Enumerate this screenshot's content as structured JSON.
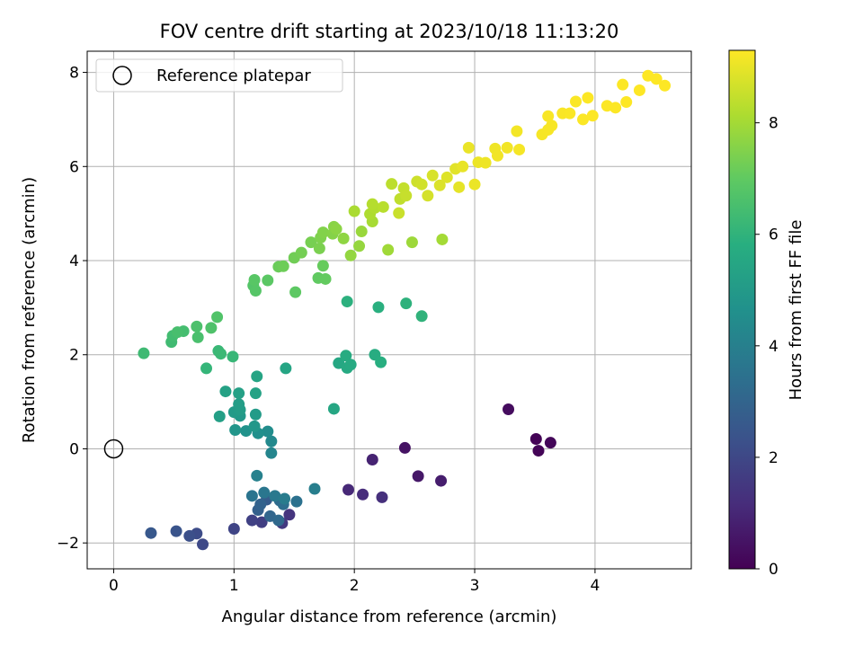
{
  "chart_data": {
    "type": "scatter",
    "title": "FOV centre drift starting at 2023/10/18 11:13:20",
    "xlabel": "Angular distance from reference (arcmin)",
    "ylabel": "Rotation from reference (arcmin)",
    "xlim": [
      -0.22,
      4.8
    ],
    "ylim": [
      -2.55,
      8.45
    ],
    "xticks": [
      0,
      1,
      2,
      3,
      4
    ],
    "yticks": [
      -2,
      0,
      2,
      4,
      6,
      8
    ],
    "grid": true,
    "legend": {
      "position": "top-left",
      "entries": [
        "Reference platepar"
      ]
    },
    "reference_point": {
      "x": 0,
      "y": 0,
      "label": "Reference platepar"
    },
    "colorbar": {
      "label": "Hours from first FF file",
      "range": [
        0,
        9.3
      ],
      "ticks": [
        0,
        2,
        4,
        6,
        8
      ],
      "colormap": "viridis"
    },
    "points": [
      [
        3.51,
        0.21,
        0.05
      ],
      [
        3.53,
        -0.04,
        0.1
      ],
      [
        3.63,
        0.13,
        0.15
      ],
      [
        3.28,
        0.84,
        0.3
      ],
      [
        2.42,
        0.02,
        0.45
      ],
      [
        2.53,
        -0.58,
        0.6
      ],
      [
        2.72,
        -0.68,
        0.75
      ],
      [
        2.15,
        -0.23,
        0.9
      ],
      [
        1.95,
        -0.87,
        1.05
      ],
      [
        2.07,
        -0.97,
        1.15
      ],
      [
        2.23,
        -1.03,
        1.25
      ],
      [
        1.46,
        -1.4,
        1.4
      ],
      [
        1.4,
        -1.58,
        1.55
      ],
      [
        1.23,
        -1.56,
        1.7
      ],
      [
        1.15,
        -1.52,
        1.8
      ],
      [
        1.0,
        -1.7,
        1.9
      ],
      [
        0.74,
        -2.03,
        2.05
      ],
      [
        0.69,
        -1.8,
        2.15
      ],
      [
        0.63,
        -1.85,
        2.25
      ],
      [
        0.52,
        -1.75,
        2.4
      ],
      [
        0.31,
        -1.79,
        2.55
      ],
      [
        1.27,
        -1.08,
        2.7
      ],
      [
        1.2,
        -1.3,
        2.85
      ],
      [
        1.22,
        -1.18,
        2.95
      ],
      [
        1.3,
        -1.43,
        3.05
      ],
      [
        1.37,
        -1.52,
        3.15
      ],
      [
        1.38,
        -1.1,
        3.25
      ],
      [
        1.41,
        -1.18,
        3.35
      ],
      [
        1.52,
        -1.12,
        3.45
      ],
      [
        1.15,
        -1.0,
        3.55
      ],
      [
        1.25,
        -0.93,
        3.65
      ],
      [
        1.34,
        -1.0,
        3.75
      ],
      [
        1.42,
        -1.06,
        3.85
      ],
      [
        1.67,
        -0.85,
        3.95
      ],
      [
        1.19,
        -0.57,
        4.05
      ],
      [
        1.31,
        -0.09,
        4.2
      ],
      [
        1.31,
        0.16,
        4.35
      ],
      [
        1.28,
        0.37,
        4.5
      ],
      [
        1.2,
        0.33,
        4.6
      ],
      [
        1.1,
        0.38,
        4.7
      ],
      [
        1.01,
        0.4,
        4.8
      ],
      [
        1.17,
        0.48,
        4.9
      ],
      [
        1.05,
        0.7,
        4.95
      ],
      [
        1.0,
        0.78,
        5.0
      ],
      [
        1.18,
        0.73,
        5.05
      ],
      [
        1.05,
        0.83,
        5.1
      ],
      [
        1.04,
        0.95,
        5.15
      ],
      [
        0.88,
        0.69,
        5.2
      ],
      [
        1.04,
        1.18,
        5.25
      ],
      [
        0.93,
        1.22,
        5.3
      ],
      [
        1.18,
        1.18,
        5.35
      ],
      [
        1.19,
        1.54,
        5.4
      ],
      [
        1.43,
        1.71,
        5.45
      ],
      [
        1.83,
        0.85,
        5.5
      ],
      [
        1.87,
        1.82,
        5.55
      ],
      [
        1.94,
        1.72,
        5.6
      ],
      [
        1.97,
        1.79,
        5.65
      ],
      [
        1.93,
        1.98,
        5.7
      ],
      [
        2.17,
        2.0,
        5.75
      ],
      [
        2.22,
        1.84,
        5.8
      ],
      [
        2.2,
        3.01,
        5.85
      ],
      [
        1.94,
        3.13,
        5.9
      ],
      [
        2.43,
        3.09,
        5.95
      ],
      [
        2.56,
        2.82,
        6.0
      ],
      [
        0.77,
        1.71,
        6.1
      ],
      [
        0.99,
        1.96,
        6.15
      ],
      [
        0.87,
        2.08,
        6.2
      ],
      [
        0.89,
        2.02,
        6.25
      ],
      [
        0.25,
        2.03,
        6.3
      ],
      [
        0.48,
        2.27,
        6.35
      ],
      [
        0.49,
        2.4,
        6.4
      ],
      [
        0.58,
        2.5,
        6.45
      ],
      [
        0.53,
        2.48,
        6.5
      ],
      [
        0.7,
        2.37,
        6.55
      ],
      [
        0.69,
        2.6,
        6.6
      ],
      [
        0.81,
        2.57,
        6.65
      ],
      [
        0.86,
        2.8,
        6.7
      ],
      [
        1.16,
        3.47,
        6.75
      ],
      [
        1.18,
        3.36,
        6.8
      ],
      [
        1.17,
        3.59,
        6.85
      ],
      [
        1.28,
        3.58,
        6.9
      ],
      [
        1.51,
        3.33,
        6.95
      ],
      [
        1.7,
        3.63,
        7.0
      ],
      [
        1.76,
        3.61,
        7.05
      ],
      [
        1.74,
        3.89,
        7.1
      ],
      [
        1.37,
        3.87,
        7.15
      ],
      [
        1.41,
        3.88,
        7.2
      ],
      [
        1.5,
        4.06,
        7.25
      ],
      [
        1.56,
        4.17,
        7.3
      ],
      [
        1.64,
        4.39,
        7.35
      ],
      [
        1.71,
        4.26,
        7.4
      ],
      [
        1.72,
        4.49,
        7.45
      ],
      [
        1.74,
        4.6,
        7.5
      ],
      [
        1.82,
        4.57,
        7.55
      ],
      [
        1.83,
        4.72,
        7.6
      ],
      [
        1.85,
        4.67,
        7.65
      ],
      [
        1.91,
        4.47,
        7.7
      ],
      [
        1.97,
        4.11,
        7.75
      ],
      [
        2.04,
        4.31,
        7.8
      ],
      [
        2.06,
        4.62,
        7.85
      ],
      [
        2.48,
        4.39,
        7.9
      ],
      [
        2.28,
        4.23,
        7.95
      ],
      [
        2.73,
        4.45,
        8.0
      ],
      [
        2.15,
        4.83,
        8.05
      ],
      [
        2.0,
        5.05,
        8.1
      ],
      [
        2.13,
        4.99,
        8.15
      ],
      [
        2.17,
        5.12,
        8.2
      ],
      [
        2.15,
        5.2,
        8.25
      ],
      [
        2.24,
        5.14,
        8.3
      ],
      [
        2.31,
        5.63,
        8.35
      ],
      [
        2.38,
        5.31,
        8.4
      ],
      [
        2.41,
        5.54,
        8.45
      ],
      [
        2.43,
        5.38,
        8.5
      ],
      [
        2.37,
        5.01,
        8.55
      ],
      [
        2.52,
        5.68,
        8.6
      ],
      [
        2.56,
        5.62,
        8.65
      ],
      [
        2.61,
        5.38,
        8.7
      ],
      [
        2.65,
        5.81,
        8.75
      ],
      [
        2.71,
        5.6,
        8.8
      ],
      [
        2.77,
        5.77,
        8.85
      ],
      [
        2.84,
        5.95,
        8.9
      ],
      [
        2.87,
        5.56,
        8.95
      ],
      [
        2.9,
        6.0,
        9.0
      ],
      [
        2.95,
        6.4,
        9.02
      ],
      [
        3.0,
        5.62,
        9.04
      ],
      [
        3.03,
        6.09,
        9.06
      ],
      [
        3.09,
        6.08,
        9.08
      ],
      [
        3.17,
        6.38,
        9.1
      ],
      [
        3.19,
        6.23,
        9.12
      ],
      [
        3.27,
        6.4,
        9.14
      ],
      [
        3.35,
        6.75,
        9.16
      ],
      [
        3.37,
        6.36,
        9.18
      ],
      [
        3.56,
        6.68,
        9.2
      ],
      [
        3.61,
        6.78,
        9.21
      ],
      [
        3.64,
        6.87,
        9.22
      ],
      [
        3.61,
        7.07,
        9.23
      ],
      [
        3.73,
        7.13,
        9.24
      ],
      [
        3.79,
        7.13,
        9.25
      ],
      [
        3.84,
        7.38,
        9.26
      ],
      [
        3.9,
        7.0,
        9.27
      ],
      [
        3.94,
        7.46,
        9.28
      ],
      [
        3.98,
        7.08,
        9.29
      ],
      [
        4.1,
        7.29,
        9.29
      ],
      [
        4.17,
        7.25,
        9.29
      ],
      [
        4.23,
        7.74,
        9.29
      ],
      [
        4.26,
        7.37,
        9.3
      ],
      [
        4.37,
        7.62,
        9.3
      ],
      [
        4.44,
        7.93,
        9.3
      ],
      [
        4.51,
        7.86,
        9.3
      ],
      [
        4.58,
        7.72,
        9.3
      ]
    ]
  }
}
